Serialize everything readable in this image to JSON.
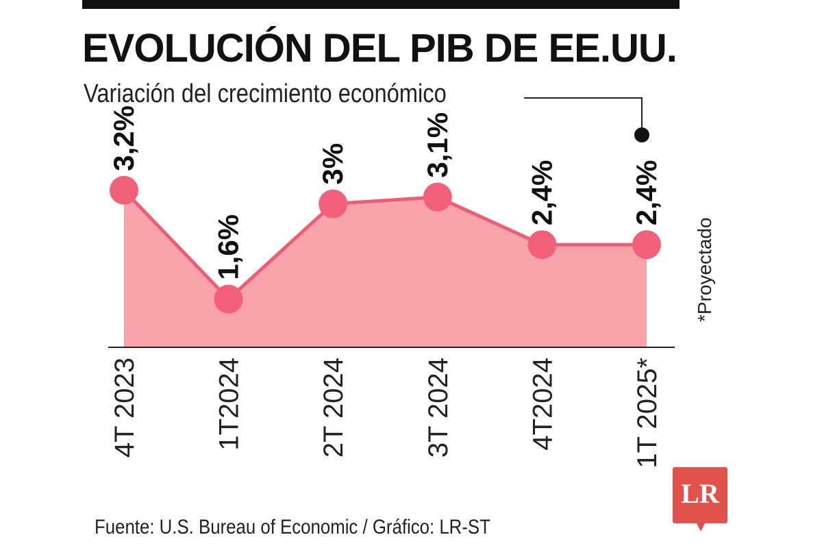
{
  "header": {
    "title": "EVOLUCIÓN DEL PIB DE EE.UU.",
    "subtitle": "Variación del crecimiento económico"
  },
  "footer": {
    "source": "Fuente: U.S. Bureau of Economic / Gráfico: LR-ST",
    "logo_text": "LR"
  },
  "annotation": {
    "projected_note": "*Proyectado"
  },
  "colors": {
    "area_fill": "#f8a3a9",
    "line": "#ee5d73",
    "marker": "#f2607a",
    "text": "#111111",
    "logo": "#e2524c"
  },
  "chart_data": {
    "type": "area",
    "title": "EVOLUCIÓN DEL PIB DE EE.UU.",
    "subtitle": "Variación del crecimiento económico",
    "categories": [
      "4T 2023",
      "1T2024",
      "2T 2024",
      "3T 2024",
      "4T2024",
      "1T 2025*"
    ],
    "values": [
      3.2,
      1.6,
      3.0,
      3.1,
      2.4,
      2.4
    ],
    "value_labels": [
      "3,2%",
      "1,6%",
      "3%",
      "3,1%",
      "2,4%",
      "2,4%"
    ],
    "unit": "%",
    "ylim": [
      0.6,
      3.6
    ],
    "grid": false,
    "legend": "none"
  }
}
